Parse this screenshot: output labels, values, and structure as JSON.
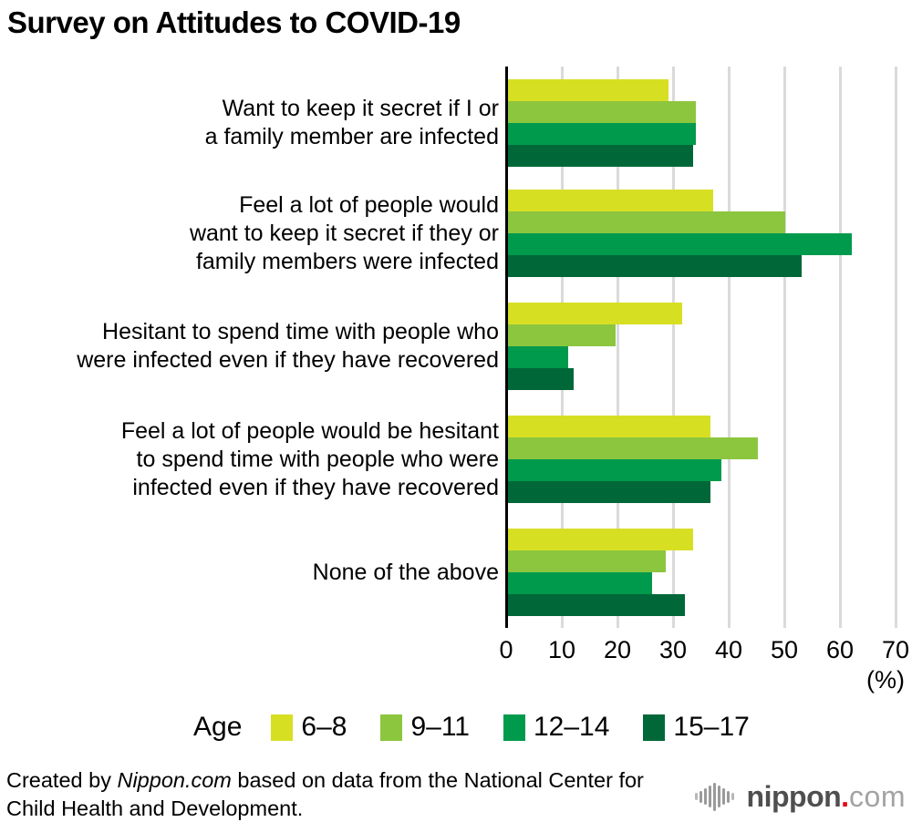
{
  "title": "Survey on Attitudes to COVID-19",
  "chart_data": {
    "type": "bar",
    "orientation": "horizontal",
    "title": "Survey on Attitudes to COVID-19",
    "unit_label": "(%)",
    "xlim": [
      0,
      70
    ],
    "xticks": [
      0,
      10,
      20,
      30,
      40,
      50,
      60,
      70
    ],
    "grid": true,
    "legend_title": "Age",
    "legend_position": "bottom",
    "categories": [
      [
        "Want to keep it secret if I or",
        "a family member are infected"
      ],
      [
        "Feel a lot of people would",
        "want to keep it secret if they or",
        "family members were infected"
      ],
      [
        "Hesitant to spend time with people who",
        "were infected even if they have recovered"
      ],
      [
        "Feel a lot of people would be hesitant",
        "to spend time with people who were",
        "infected even if they have recovered"
      ],
      [
        "None of the above"
      ]
    ],
    "series": [
      {
        "name": "6–8",
        "color": "#d7df23",
        "values": [
          29,
          37,
          31.5,
          36.5,
          33.5
        ]
      },
      {
        "name": "9–11",
        "color": "#8cc63e",
        "values": [
          34,
          50,
          19.5,
          45,
          28.5
        ]
      },
      {
        "name": "12–14",
        "color": "#009a4d",
        "values": [
          34,
          62,
          11,
          38.5,
          26
        ]
      },
      {
        "name": "15–17",
        "color": "#006838",
        "values": [
          33.5,
          53,
          12,
          36.5,
          32
        ]
      }
    ]
  },
  "footer": {
    "credit_prefix": "Created by ",
    "credit_brand": "Nippon.com",
    "credit_suffix": " based on data from the National Center for Child Health and Development."
  },
  "logo": {
    "name": "nippon",
    "dot": ".",
    "tld": "com",
    "red": "#e60012",
    "bar_color": "#9a9a9a"
  }
}
